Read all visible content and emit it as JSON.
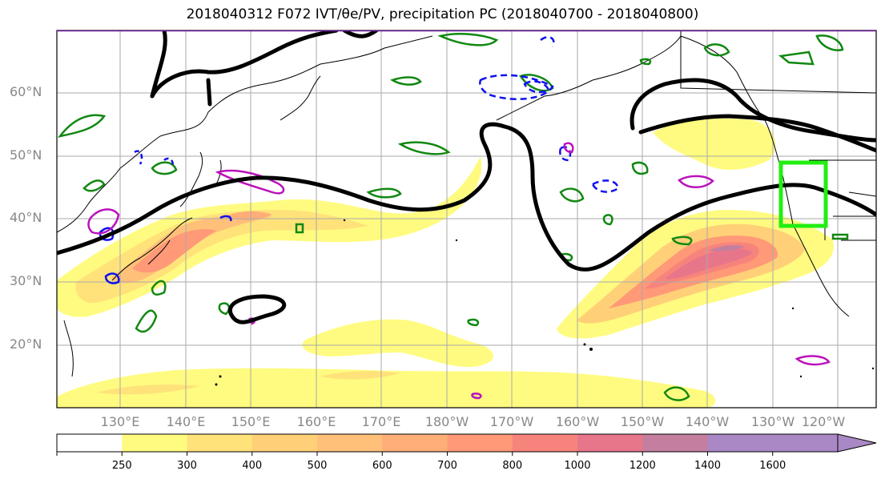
{
  "title": "2018040312 F072 IVT/θe/PV, precipitation PC (2018040700 - 2018040800)",
  "lat_labels": [
    "60°N",
    "50°N",
    "40°N",
    "30°N",
    "20°N"
  ],
  "lon_labels": [
    "130°E",
    "140°E",
    "150°E",
    "160°E",
    "170°E",
    "180°W",
    "170°W",
    "160°W",
    "150°W",
    "140°W",
    "130°W",
    "120°W"
  ],
  "colorbar": {
    "ticks": [
      "250",
      "300",
      "400",
      "500",
      "600",
      "700",
      "800",
      "1000",
      "1200",
      "1400",
      "1600"
    ],
    "colors": [
      "#ffffff",
      "#fffb80",
      "#ffe27a",
      "#ffd078",
      "#ffc07a",
      "#ffae78",
      "#ff9977",
      "#f7847c",
      "#e8768a",
      "#c47f9f",
      "#a988c5",
      "#a988c5"
    ]
  },
  "colors": {
    "target_box": "#22ee11",
    "theta_contour": "#000000",
    "pv_positive": "#118811",
    "pv_negative": "#1111ee",
    "precip": "#bb11bb"
  }
}
